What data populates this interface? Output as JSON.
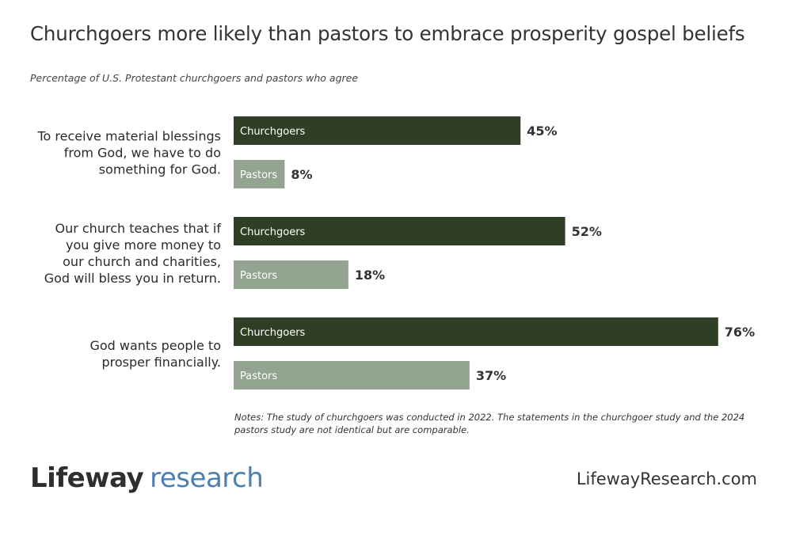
{
  "title": "Churchgoers more likely than pastors to embrace prosperity gospel beliefs",
  "subtitle": "Percentage of U.S. Protestant churchgoers and pastors who agree",
  "notes": "Notes: The study of churchgoers was conducted in 2022. The statements in the churchgoer study and the 2024 pastors study are not identical but are comparable.",
  "footer": {
    "logo_brand": "Lifeway",
    "logo_sub": "research",
    "website": "LifewayResearch.com"
  },
  "colors": {
    "churchgoers": "#2f3f25",
    "pastors": "#93a491",
    "logo_accent": "#4a7fb0"
  },
  "chart_data": {
    "type": "bar",
    "orientation": "horizontal",
    "categories": [
      [
        "To receive material blessings",
        "from God, we have to do",
        "something for God."
      ],
      [
        "Our church teaches that if",
        "you give more money to",
        "our church and charities,",
        "God will bless you in return."
      ],
      [
        "God wants people to",
        "prosper financially."
      ]
    ],
    "series": [
      {
        "name": "Churchgoers",
        "values": [
          45,
          52,
          76
        ]
      },
      {
        "name": "Pastors",
        "values": [
          8,
          18,
          37
        ]
      }
    ],
    "value_suffix": "%",
    "xlim": [
      0,
      100
    ],
    "grid": false,
    "legend": "inside-bars"
  }
}
